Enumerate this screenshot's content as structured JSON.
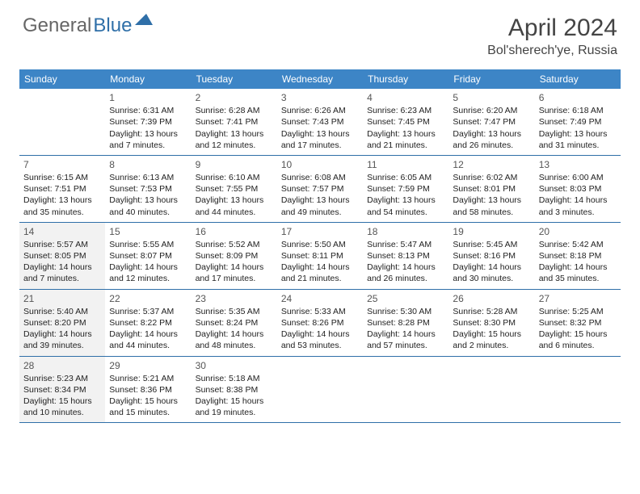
{
  "logo": {
    "general": "General",
    "blue": "Blue"
  },
  "title": "April 2024",
  "location": "Bol'sherech'ye, Russia",
  "colors": {
    "header_bg": "#3d85c6",
    "header_text": "#ffffff",
    "border": "#2f6fa8",
    "text": "#333333",
    "shaded_bg": "#f2f2f2"
  },
  "weekdays": [
    "Sunday",
    "Monday",
    "Tuesday",
    "Wednesday",
    "Thursday",
    "Friday",
    "Saturday"
  ],
  "weeks": [
    [
      {
        "n": "",
        "sr": "",
        "ss": "",
        "dl": "",
        "empty": true
      },
      {
        "n": "1",
        "sr": "Sunrise: 6:31 AM",
        "ss": "Sunset: 7:39 PM",
        "dl": "Daylight: 13 hours and 7 minutes."
      },
      {
        "n": "2",
        "sr": "Sunrise: 6:28 AM",
        "ss": "Sunset: 7:41 PM",
        "dl": "Daylight: 13 hours and 12 minutes."
      },
      {
        "n": "3",
        "sr": "Sunrise: 6:26 AM",
        "ss": "Sunset: 7:43 PM",
        "dl": "Daylight: 13 hours and 17 minutes."
      },
      {
        "n": "4",
        "sr": "Sunrise: 6:23 AM",
        "ss": "Sunset: 7:45 PM",
        "dl": "Daylight: 13 hours and 21 minutes."
      },
      {
        "n": "5",
        "sr": "Sunrise: 6:20 AM",
        "ss": "Sunset: 7:47 PM",
        "dl": "Daylight: 13 hours and 26 minutes."
      },
      {
        "n": "6",
        "sr": "Sunrise: 6:18 AM",
        "ss": "Sunset: 7:49 PM",
        "dl": "Daylight: 13 hours and 31 minutes."
      }
    ],
    [
      {
        "n": "7",
        "sr": "Sunrise: 6:15 AM",
        "ss": "Sunset: 7:51 PM",
        "dl": "Daylight: 13 hours and 35 minutes."
      },
      {
        "n": "8",
        "sr": "Sunrise: 6:13 AM",
        "ss": "Sunset: 7:53 PM",
        "dl": "Daylight: 13 hours and 40 minutes."
      },
      {
        "n": "9",
        "sr": "Sunrise: 6:10 AM",
        "ss": "Sunset: 7:55 PM",
        "dl": "Daylight: 13 hours and 44 minutes."
      },
      {
        "n": "10",
        "sr": "Sunrise: 6:08 AM",
        "ss": "Sunset: 7:57 PM",
        "dl": "Daylight: 13 hours and 49 minutes."
      },
      {
        "n": "11",
        "sr": "Sunrise: 6:05 AM",
        "ss": "Sunset: 7:59 PM",
        "dl": "Daylight: 13 hours and 54 minutes."
      },
      {
        "n": "12",
        "sr": "Sunrise: 6:02 AM",
        "ss": "Sunset: 8:01 PM",
        "dl": "Daylight: 13 hours and 58 minutes."
      },
      {
        "n": "13",
        "sr": "Sunrise: 6:00 AM",
        "ss": "Sunset: 8:03 PM",
        "dl": "Daylight: 14 hours and 3 minutes."
      }
    ],
    [
      {
        "n": "14",
        "sr": "Sunrise: 5:57 AM",
        "ss": "Sunset: 8:05 PM",
        "dl": "Daylight: 14 hours and 7 minutes.",
        "shaded": true
      },
      {
        "n": "15",
        "sr": "Sunrise: 5:55 AM",
        "ss": "Sunset: 8:07 PM",
        "dl": "Daylight: 14 hours and 12 minutes."
      },
      {
        "n": "16",
        "sr": "Sunrise: 5:52 AM",
        "ss": "Sunset: 8:09 PM",
        "dl": "Daylight: 14 hours and 17 minutes."
      },
      {
        "n": "17",
        "sr": "Sunrise: 5:50 AM",
        "ss": "Sunset: 8:11 PM",
        "dl": "Daylight: 14 hours and 21 minutes."
      },
      {
        "n": "18",
        "sr": "Sunrise: 5:47 AM",
        "ss": "Sunset: 8:13 PM",
        "dl": "Daylight: 14 hours and 26 minutes."
      },
      {
        "n": "19",
        "sr": "Sunrise: 5:45 AM",
        "ss": "Sunset: 8:16 PM",
        "dl": "Daylight: 14 hours and 30 minutes."
      },
      {
        "n": "20",
        "sr": "Sunrise: 5:42 AM",
        "ss": "Sunset: 8:18 PM",
        "dl": "Daylight: 14 hours and 35 minutes."
      }
    ],
    [
      {
        "n": "21",
        "sr": "Sunrise: 5:40 AM",
        "ss": "Sunset: 8:20 PM",
        "dl": "Daylight: 14 hours and 39 minutes.",
        "shaded": true
      },
      {
        "n": "22",
        "sr": "Sunrise: 5:37 AM",
        "ss": "Sunset: 8:22 PM",
        "dl": "Daylight: 14 hours and 44 minutes."
      },
      {
        "n": "23",
        "sr": "Sunrise: 5:35 AM",
        "ss": "Sunset: 8:24 PM",
        "dl": "Daylight: 14 hours and 48 minutes."
      },
      {
        "n": "24",
        "sr": "Sunrise: 5:33 AM",
        "ss": "Sunset: 8:26 PM",
        "dl": "Daylight: 14 hours and 53 minutes."
      },
      {
        "n": "25",
        "sr": "Sunrise: 5:30 AM",
        "ss": "Sunset: 8:28 PM",
        "dl": "Daylight: 14 hours and 57 minutes."
      },
      {
        "n": "26",
        "sr": "Sunrise: 5:28 AM",
        "ss": "Sunset: 8:30 PM",
        "dl": "Daylight: 15 hours and 2 minutes."
      },
      {
        "n": "27",
        "sr": "Sunrise: 5:25 AM",
        "ss": "Sunset: 8:32 PM",
        "dl": "Daylight: 15 hours and 6 minutes."
      }
    ],
    [
      {
        "n": "28",
        "sr": "Sunrise: 5:23 AM",
        "ss": "Sunset: 8:34 PM",
        "dl": "Daylight: 15 hours and 10 minutes.",
        "shaded": true
      },
      {
        "n": "29",
        "sr": "Sunrise: 5:21 AM",
        "ss": "Sunset: 8:36 PM",
        "dl": "Daylight: 15 hours and 15 minutes."
      },
      {
        "n": "30",
        "sr": "Sunrise: 5:18 AM",
        "ss": "Sunset: 8:38 PM",
        "dl": "Daylight: 15 hours and 19 minutes."
      },
      {
        "n": "",
        "sr": "",
        "ss": "",
        "dl": "",
        "empty": true
      },
      {
        "n": "",
        "sr": "",
        "ss": "",
        "dl": "",
        "empty": true
      },
      {
        "n": "",
        "sr": "",
        "ss": "",
        "dl": "",
        "empty": true
      },
      {
        "n": "",
        "sr": "",
        "ss": "",
        "dl": "",
        "empty": true
      }
    ]
  ]
}
